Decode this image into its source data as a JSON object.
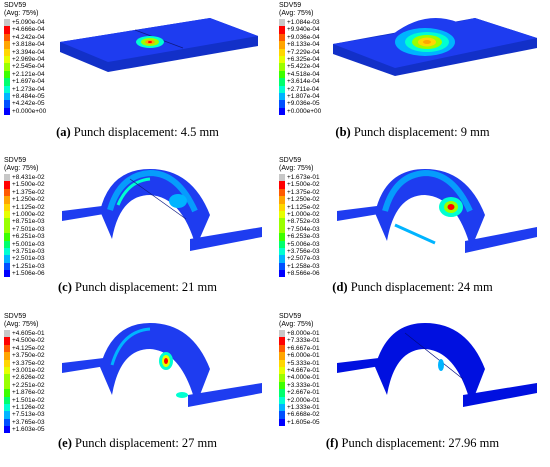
{
  "colors": {
    "levels": [
      "#c8c8c8",
      "#ff0000",
      "#ff5a00",
      "#ffa500",
      "#ffd700",
      "#e6ff00",
      "#9aff00",
      "#3cff00",
      "#00ff6e",
      "#00ffd2",
      "#00b4ff",
      "#0050ff",
      "#0000ff"
    ],
    "plate_base": "#1e3cf0",
    "plate_edge": "#1230c8"
  },
  "panels": [
    {
      "legend_title": "SDV59",
      "legend_subtitle": "(Avg: 75%)",
      "legend_values": [
        "+5.090e-04",
        "+4.666e-04",
        "+4.242e-04",
        "+3.818e-04",
        "+3.394e-04",
        "+2.969e-04",
        "+2.545e-04",
        "+2.121e-04",
        "+1.697e-04",
        "+1.273e-04",
        "+8.484e-05",
        "+4.242e-05",
        "+0.000e+00"
      ],
      "caption_letter": "(a)",
      "caption_text": " Punch displacement: 4.5 mm"
    },
    {
      "legend_title": "SDV59",
      "legend_subtitle": "(Avg: 75%)",
      "legend_values": [
        "+1.084e-03",
        "+9.940e-04",
        "+9.036e-04",
        "+8.133e-04",
        "+7.229e-04",
        "+6.325e-04",
        "+5.422e-04",
        "+4.518e-04",
        "+3.614e-04",
        "+2.711e-04",
        "+1.807e-04",
        "+9.036e-05",
        "+0.000e+00"
      ],
      "caption_letter": "(b)",
      "caption_text": " Punch displacement: 9 mm"
    },
    {
      "legend_title": "SDV59",
      "legend_subtitle": "(Avg: 75%)",
      "legend_values": [
        "+8.431e-02",
        "+1.500e-02",
        "+1.375e-02",
        "+1.250e-02",
        "+1.125e-02",
        "+1.000e-02",
        "+8.751e-03",
        "+7.501e-03",
        "+6.251e-03",
        "+5.001e-03",
        "+3.751e-03",
        "+2.501e-03",
        "+1.251e-03",
        "+1.506e-06"
      ],
      "caption_letter": "(c)",
      "caption_text": " Punch displacement: 21 mm"
    },
    {
      "legend_title": "SDV59",
      "legend_subtitle": "(Avg: 75%)",
      "legend_values": [
        "+1.673e-01",
        "+1.500e-02",
        "+1.375e-02",
        "+1.250e-02",
        "+1.125e-02",
        "+1.000e-02",
        "+8.752e-03",
        "+7.504e-03",
        "+6.253e-03",
        "+5.006e-03",
        "+3.756e-03",
        "+2.507e-03",
        "+1.258e-03",
        "+8.566e-06"
      ],
      "caption_letter": "(d)",
      "caption_text": " Punch displacement: 24 mm"
    },
    {
      "legend_title": "SDV59",
      "legend_subtitle": "(Avg: 75%)",
      "legend_values": [
        "+4.605e-01",
        "+4.500e-02",
        "+4.125e-02",
        "+3.750e-02",
        "+3.375e-02",
        "+3.001e-02",
        "+2.626e-02",
        "+2.251e-02",
        "+1.876e-02",
        "+1.501e-02",
        "+1.126e-02",
        "+7.513e-03",
        "+3.765e-03",
        "+1.603e-05"
      ],
      "caption_letter": "(e)",
      "caption_text": " Punch displacement: 27 mm"
    },
    {
      "legend_title": "SDV59",
      "legend_subtitle": "(Avg: 75%)",
      "legend_values": [
        "+8.000e-01",
        "+7.333e-01",
        "+6.667e-01",
        "+6.000e-01",
        "+5.333e-01",
        "+4.667e-01",
        "+4.000e-01",
        "+3.333e-01",
        "+2.667e-01",
        "+2.000e-01",
        "+1.333e-01",
        "+6.668e-02",
        "+1.605e-05"
      ],
      "caption_letter": "(f)",
      "caption_text": " Punch displacement: 27.96 mm"
    }
  ]
}
